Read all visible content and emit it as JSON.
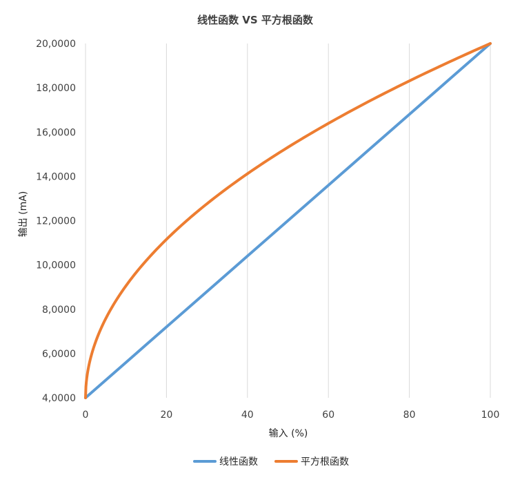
{
  "chart_data": {
    "type": "line",
    "title": "线性函数 VS 平方根函数",
    "xlabel": "输入 (%)",
    "ylabel": "输出 (mA)",
    "xlim": [
      0,
      100
    ],
    "ylim": [
      4,
      20
    ],
    "x_ticks": [
      0,
      20,
      40,
      60,
      80,
      100
    ],
    "x_tick_labels": [
      "0",
      "20",
      "40",
      "60",
      "80",
      "100"
    ],
    "y_ticks": [
      4,
      6,
      8,
      10,
      12,
      14,
      16,
      18,
      20
    ],
    "y_tick_labels": [
      "4,0000",
      "6,0000",
      "8,0000",
      "10,0000",
      "12,0000",
      "14,0000",
      "16,0000",
      "18,0000",
      "20,0000"
    ],
    "grid": "vertical",
    "legend": "bottom",
    "x": [
      0,
      1,
      2,
      5,
      10,
      15,
      20,
      25,
      30,
      40,
      50,
      60,
      70,
      80,
      90,
      100
    ],
    "series": [
      {
        "name": "线性函数",
        "color": "#5b9bd5",
        "values": [
          4.0,
          4.16,
          4.32,
          4.8,
          5.6,
          6.4,
          7.2,
          8.0,
          8.8,
          10.4,
          12.0,
          13.6,
          15.2,
          16.8,
          18.4,
          20.0
        ]
      },
      {
        "name": "平方根函数",
        "color": "#ed7d31",
        "values": [
          4.0,
          5.6,
          6.26,
          7.58,
          9.06,
          10.2,
          11.16,
          12.0,
          12.76,
          14.12,
          15.31,
          16.39,
          17.39,
          18.31,
          19.18,
          20.0
        ]
      }
    ]
  }
}
